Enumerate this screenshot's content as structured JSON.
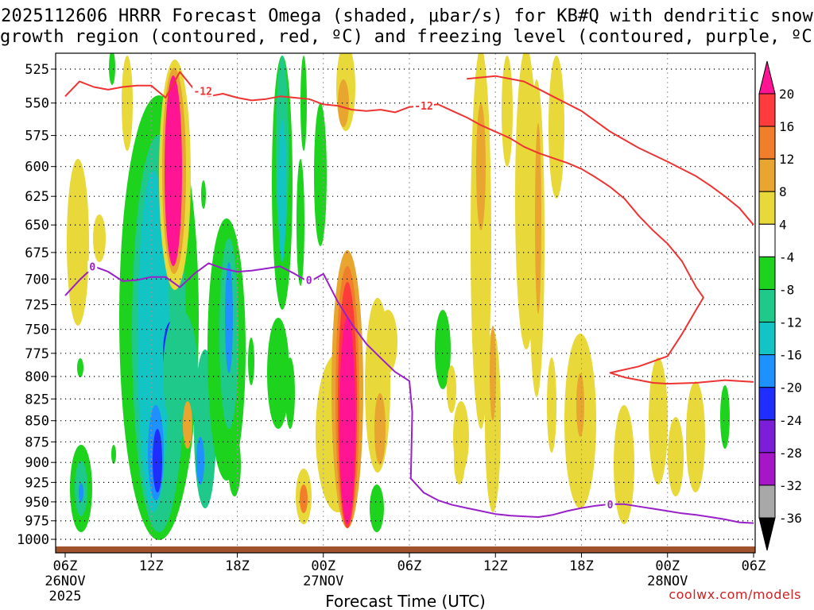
{
  "title_line1": "2025112606 HRRR Forecast Omega (shaded, μbar/s) for KB#Q with dendritic snow",
  "title_line2": "growth region (contoured, red, ºC) and freezing level (contoured, purple, ºC)",
  "credit": "coolwx.com/models",
  "credit_color": "#cc2222",
  "chart_data": {
    "type": "time-height cross section",
    "title": "2025112606 HRRR Forecast Omega (shaded, μbar/s) for KB#Q with dendritic snow growth region (contoured, red, ºC) and freezing level (contoured, purple, ºC)",
    "xlabel": "Forecast Time (UTC)",
    "ylabel": "Pressure (hPa)",
    "x_range_hours": [
      0,
      48
    ],
    "y_range_hpa": [
      1012,
      517
    ],
    "y_ticks": [
      525,
      550,
      575,
      600,
      625,
      650,
      675,
      700,
      725,
      750,
      775,
      800,
      825,
      850,
      875,
      900,
      925,
      950,
      975,
      1000
    ],
    "x_ticks": [
      {
        "h": 0,
        "label": "06Z",
        "sub1": "26NOV",
        "sub2": "2025"
      },
      {
        "h": 6,
        "label": "12Z",
        "sub1": "",
        "sub2": ""
      },
      {
        "h": 12,
        "label": "18Z",
        "sub1": "",
        "sub2": ""
      },
      {
        "h": 18,
        "label": "00Z",
        "sub1": "27NOV",
        "sub2": ""
      },
      {
        "h": 24,
        "label": "06Z",
        "sub1": "",
        "sub2": ""
      },
      {
        "h": 30,
        "label": "12Z",
        "sub1": "",
        "sub2": ""
      },
      {
        "h": 36,
        "label": "18Z",
        "sub1": "",
        "sub2": ""
      },
      {
        "h": 42,
        "label": "00Z",
        "sub1": "28NOV",
        "sub2": ""
      },
      {
        "h": 48,
        "label": "06Z",
        "sub1": "",
        "sub2": ""
      }
    ],
    "colorbar": {
      "tick_labels": [
        "20",
        "16",
        "12",
        "8",
        "4",
        "-4",
        "-8",
        "-12",
        "-16",
        "-20",
        "-24",
        "-28",
        "-32",
        "-36"
      ],
      "bands": [
        {
          "range": ">20",
          "color": "#ff1493"
        },
        {
          "range": "16 to 20",
          "color": "#ff3b3b"
        },
        {
          "range": "12 to 16",
          "color": "#f07e2a"
        },
        {
          "range": "8 to 12",
          "color": "#e8a530"
        },
        {
          "range": "4 to 8",
          "color": "#e8d83a"
        },
        {
          "range": "-4 to 4",
          "color": "#ffffff"
        },
        {
          "range": "-8 to -4",
          "color": "#1ed31e"
        },
        {
          "range": "-12 to -8",
          "color": "#1ec98a"
        },
        {
          "range": "-16 to -12",
          "color": "#12c4c4"
        },
        {
          "range": "-20 to -16",
          "color": "#1e90ff"
        },
        {
          "range": "-24 to -20",
          "color": "#1e2eff"
        },
        {
          "range": "-28 to -24",
          "color": "#7a1ed8"
        },
        {
          "range": "-32 to -28",
          "color": "#a416c8"
        },
        {
          "range": "-36 to -32",
          "color": "#a8a8a8"
        },
        {
          "range": "<-36",
          "color": "#000000"
        }
      ]
    },
    "contours": {
      "dgz_minus12_upper": {
        "label": "-12",
        "color": "#ee3333",
        "points": [
          [
            0,
            545
          ],
          [
            1,
            534
          ],
          [
            2,
            538
          ],
          [
            3,
            540
          ],
          [
            4,
            538
          ],
          [
            5,
            537
          ],
          [
            6,
            537
          ],
          [
            7,
            546
          ],
          [
            8,
            527
          ],
          [
            9,
            540
          ],
          [
            10,
            545
          ],
          [
            11,
            543
          ],
          [
            12,
            546
          ],
          [
            13,
            548
          ],
          [
            14,
            547
          ],
          [
            15,
            545
          ],
          [
            16,
            546
          ],
          [
            17,
            547
          ],
          [
            18,
            551
          ],
          [
            19,
            552
          ],
          [
            20,
            555
          ],
          [
            21,
            556
          ],
          [
            22,
            555
          ],
          [
            23,
            557
          ],
          [
            24,
            553
          ],
          [
            25,
            552
          ],
          [
            26,
            551
          ],
          [
            27,
            556
          ],
          [
            28,
            561
          ],
          [
            29,
            567
          ],
          [
            30,
            572
          ],
          [
            31,
            577
          ],
          [
            32,
            584
          ],
          [
            33,
            589
          ],
          [
            34,
            593
          ],
          [
            35,
            597
          ],
          [
            36,
            602
          ],
          [
            37,
            609
          ],
          [
            38,
            617
          ],
          [
            39,
            627
          ],
          [
            40,
            642
          ],
          [
            41,
            655
          ],
          [
            42,
            667
          ],
          [
            43,
            683
          ],
          [
            44,
            708
          ],
          [
            44.5,
            718
          ],
          [
            44,
            730
          ],
          [
            43,
            755
          ],
          [
            42,
            778
          ],
          [
            40,
            789
          ],
          [
            38,
            796
          ],
          [
            39,
            801
          ],
          [
            41,
            807
          ],
          [
            42,
            808
          ],
          [
            44,
            807
          ],
          [
            46,
            804
          ],
          [
            48,
            806
          ]
        ]
      },
      "dgz_minus12_right": {
        "label": "",
        "color": "#ee3333",
        "points": [
          [
            28,
            532
          ],
          [
            30,
            530
          ],
          [
            32,
            534
          ],
          [
            34,
            545
          ],
          [
            36,
            556
          ],
          [
            38,
            572
          ],
          [
            40,
            585
          ],
          [
            42,
            596
          ],
          [
            44,
            608
          ],
          [
            45,
            616
          ],
          [
            46,
            625
          ],
          [
            47,
            635
          ],
          [
            48,
            650
          ]
        ]
      },
      "freezing_level_0C": {
        "label": "0",
        "color": "#9920c8",
        "points": [
          [
            0,
            716
          ],
          [
            1,
            701
          ],
          [
            2,
            688
          ],
          [
            3,
            693
          ],
          [
            4,
            702
          ],
          [
            5,
            701
          ],
          [
            6,
            698
          ],
          [
            7,
            698
          ],
          [
            8,
            708
          ],
          [
            9,
            695
          ],
          [
            10,
            685
          ],
          [
            11,
            690
          ],
          [
            12,
            693
          ],
          [
            13,
            692
          ],
          [
            14,
            690
          ],
          [
            15,
            688
          ],
          [
            16,
            695
          ],
          [
            17,
            703
          ],
          [
            18,
            695
          ],
          [
            19,
            722
          ],
          [
            20,
            745
          ],
          [
            21,
            765
          ],
          [
            22,
            780
          ],
          [
            23,
            795
          ],
          [
            24,
            805
          ],
          [
            24.2,
            840
          ],
          [
            24.1,
            920
          ],
          [
            25,
            938
          ],
          [
            26,
            948
          ],
          [
            27,
            954
          ],
          [
            28,
            958
          ],
          [
            29,
            962
          ],
          [
            30,
            966
          ],
          [
            31,
            968
          ],
          [
            32,
            969
          ],
          [
            33,
            970
          ],
          [
            34,
            967
          ],
          [
            35,
            962
          ],
          [
            36,
            958
          ],
          [
            37,
            955
          ],
          [
            38,
            953
          ],
          [
            39,
            953
          ],
          [
            40,
            956
          ],
          [
            41,
            959
          ],
          [
            42,
            962
          ],
          [
            43,
            965
          ],
          [
            44,
            967
          ],
          [
            45,
            970
          ],
          [
            46,
            973
          ],
          [
            47,
            977
          ],
          [
            48,
            978
          ]
        ]
      }
    }
  }
}
